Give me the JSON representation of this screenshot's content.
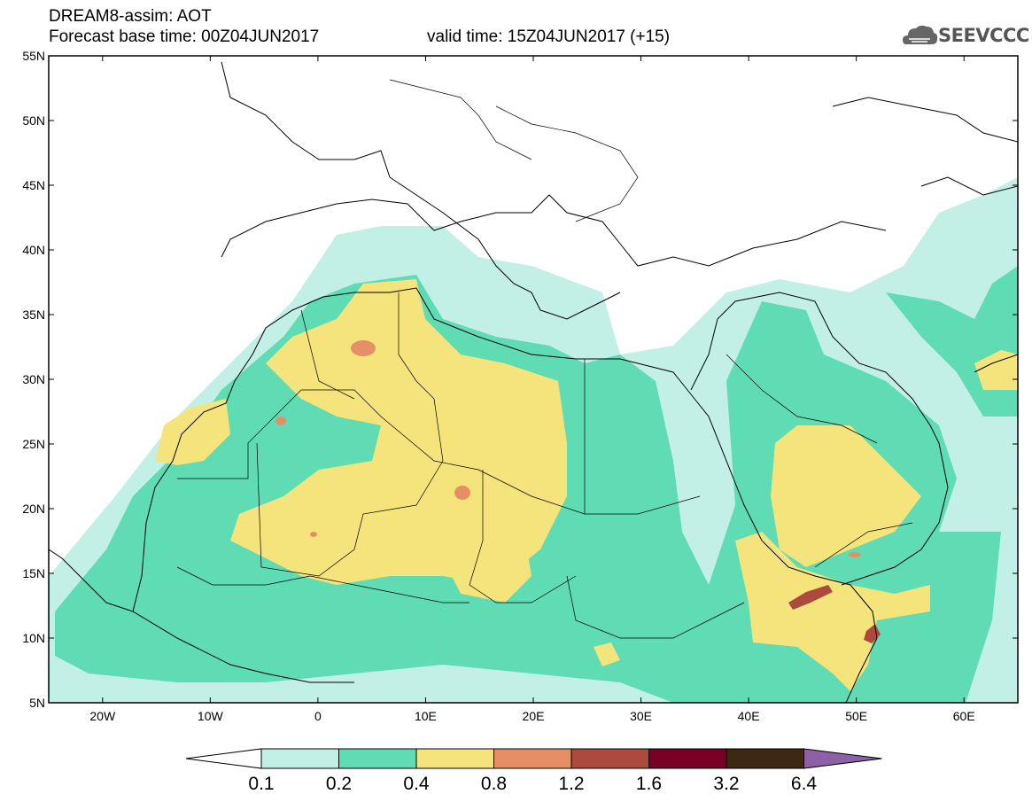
{
  "header": {
    "line1": "DREAM8-assim: AOT",
    "base_time": "Forecast base time: 00Z04JUN2017",
    "valid_time": "valid time: 15Z04JUN2017 (+15)",
    "logo_text": "SEEVCCC",
    "logo_icon": "cloud-icon"
  },
  "map": {
    "lat_range": [
      5,
      55
    ],
    "lon_range": [
      -25,
      65
    ],
    "lat_labels": [
      "55N",
      "50N",
      "45N",
      "40N",
      "35N",
      "30N",
      "25N",
      "20N",
      "15N",
      "10N",
      "5N"
    ],
    "lon_labels": [
      "20W",
      "10W",
      "0",
      "10E",
      "20E",
      "30E",
      "40E",
      "50E",
      "60E"
    ]
  },
  "colorbar": {
    "labels": [
      "0.1",
      "0.2",
      "0.4",
      "0.8",
      "1.2",
      "1.6",
      "3.2",
      "6.4"
    ],
    "colors": [
      "#ffffff",
      "#c2efe6",
      "#5fdcb4",
      "#f5e47b",
      "#e68f66",
      "#ad4a3e",
      "#7a0026",
      "#3d2814",
      "#8e60a6"
    ]
  }
}
